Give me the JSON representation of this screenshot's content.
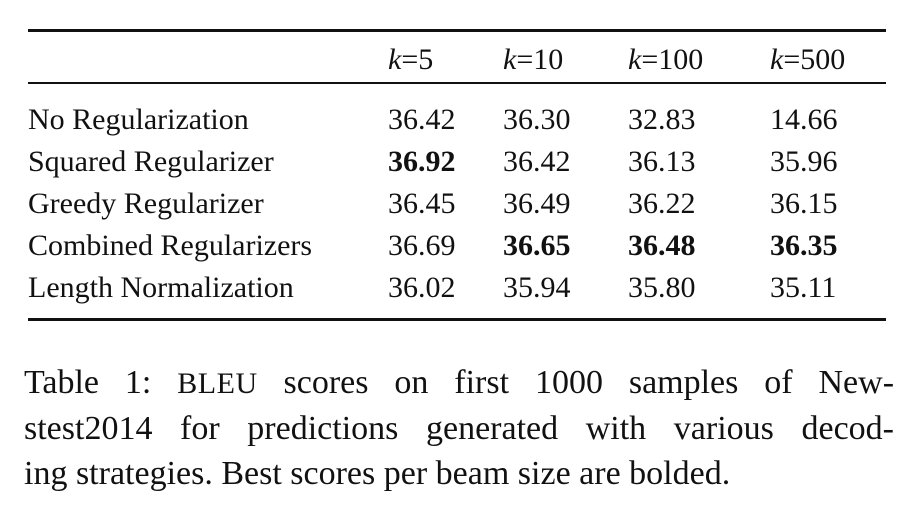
{
  "table": {
    "header": {
      "k_symbol": "k",
      "equals": "=",
      "columns": [
        "5",
        "10",
        "100",
        "500"
      ]
    },
    "rows": [
      {
        "label": "No Regularization",
        "values": [
          "36.42",
          "36.30",
          "32.83",
          "14.66"
        ],
        "bold": [
          false,
          false,
          false,
          false
        ]
      },
      {
        "label": "Squared Regularizer",
        "values": [
          "36.92",
          "36.42",
          "36.13",
          "35.96"
        ],
        "bold": [
          true,
          false,
          false,
          false
        ]
      },
      {
        "label": "Greedy Regularizer",
        "values": [
          "36.45",
          "36.49",
          "36.22",
          "36.15"
        ],
        "bold": [
          false,
          false,
          false,
          false
        ]
      },
      {
        "label": "Combined Regularizers",
        "values": [
          "36.69",
          "36.65",
          "36.48",
          "36.35"
        ],
        "bold": [
          false,
          true,
          true,
          true
        ]
      },
      {
        "label": "Length Normalization",
        "values": [
          "36.02",
          "35.94",
          "35.80",
          "35.11"
        ],
        "bold": [
          false,
          false,
          false,
          false
        ]
      }
    ]
  },
  "caption": {
    "prefix": "Table 1:",
    "metric": "BLEU",
    "line1_rest": "scores on first 1000 samples of New-",
    "line2": "stest2014 for predictions generated with various decod-",
    "line3": "ing strategies. Best scores per beam size are bolded."
  }
}
